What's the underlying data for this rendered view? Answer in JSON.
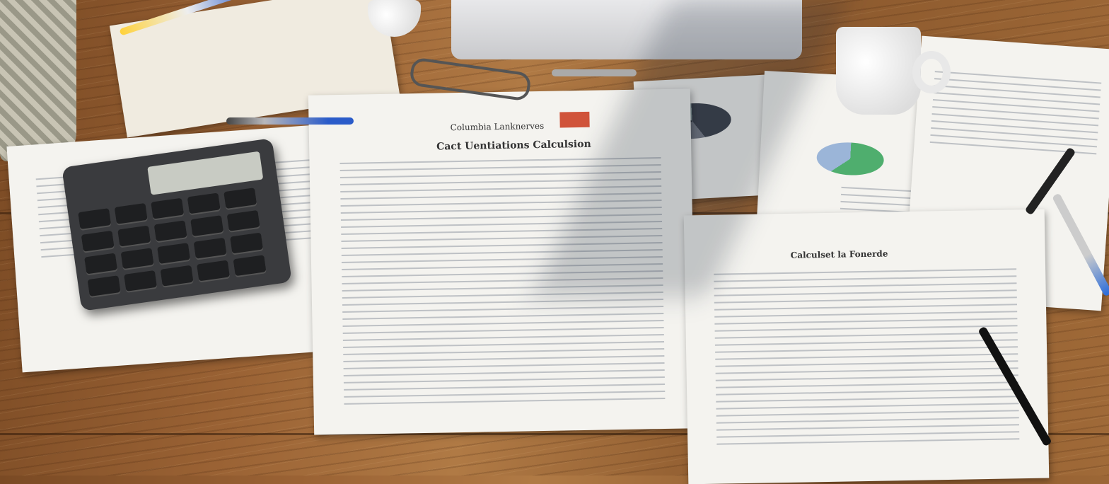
{
  "scene": {
    "objects": [
      "calculator",
      "coffee-mug",
      "laptop",
      "glasses",
      "pens",
      "documents"
    ],
    "main_document": {
      "header": "Columbia Lanknerves",
      "title": "Cact Uentiations Calculsion",
      "badge_color": "#d0533a"
    },
    "right_document": {
      "title": "Calculset la Fonerde"
    },
    "colors": {
      "wood": "#9a6234",
      "paper": "#f4f3ef",
      "pie_green": "#4fae6e",
      "pie_dark": "#555a66"
    }
  }
}
